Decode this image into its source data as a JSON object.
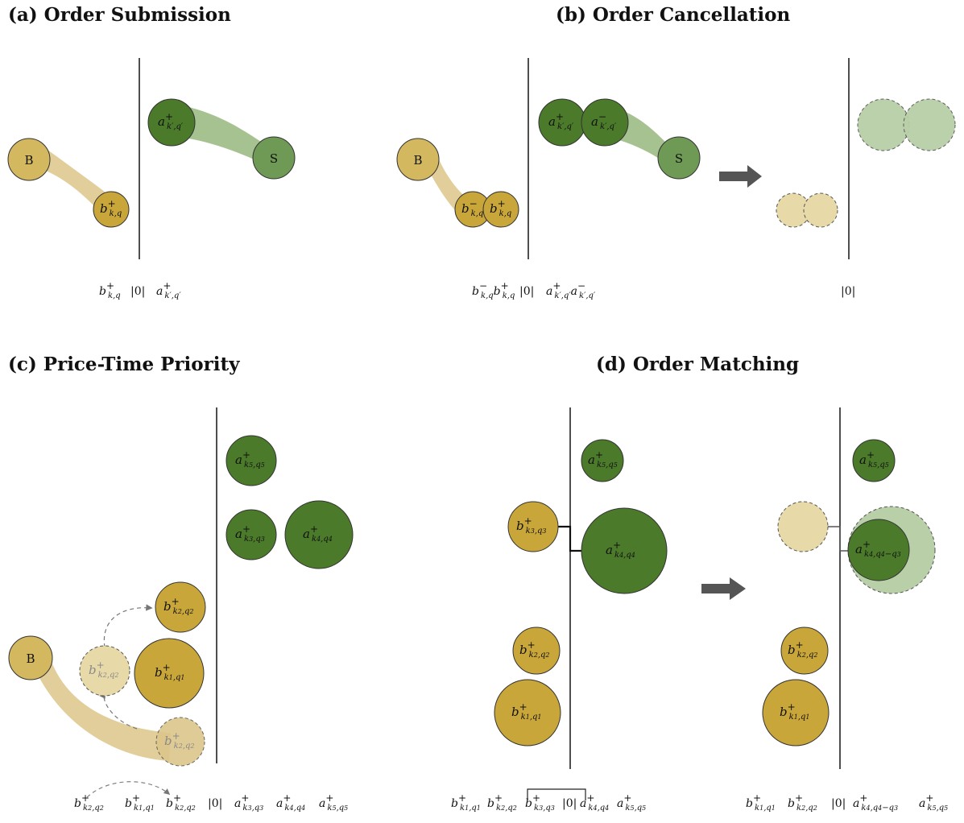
{
  "panels": {
    "a": {
      "title": "(a) Order Submission"
    },
    "b": {
      "title": "(b) Order Cancellation"
    },
    "c": {
      "title": "(c) Price-Time Priority"
    },
    "d": {
      "title": "(d) Order Matching"
    }
  },
  "labels": {
    "buyer": "B",
    "seller": "S",
    "zero": "|0|"
  },
  "colors": {
    "bid": "#C9A63A",
    "bid_light": "#D4B860",
    "bid_faded": "#E8D9A8",
    "bid_flow": "#DCC68A",
    "ask": "#4A7A2A",
    "ask_light": "#6E9A55",
    "ask_faded": "#B8CFA8",
    "ask_flow": "#9DBB85",
    "line": "#222222",
    "arrow": "#555555"
  }
}
